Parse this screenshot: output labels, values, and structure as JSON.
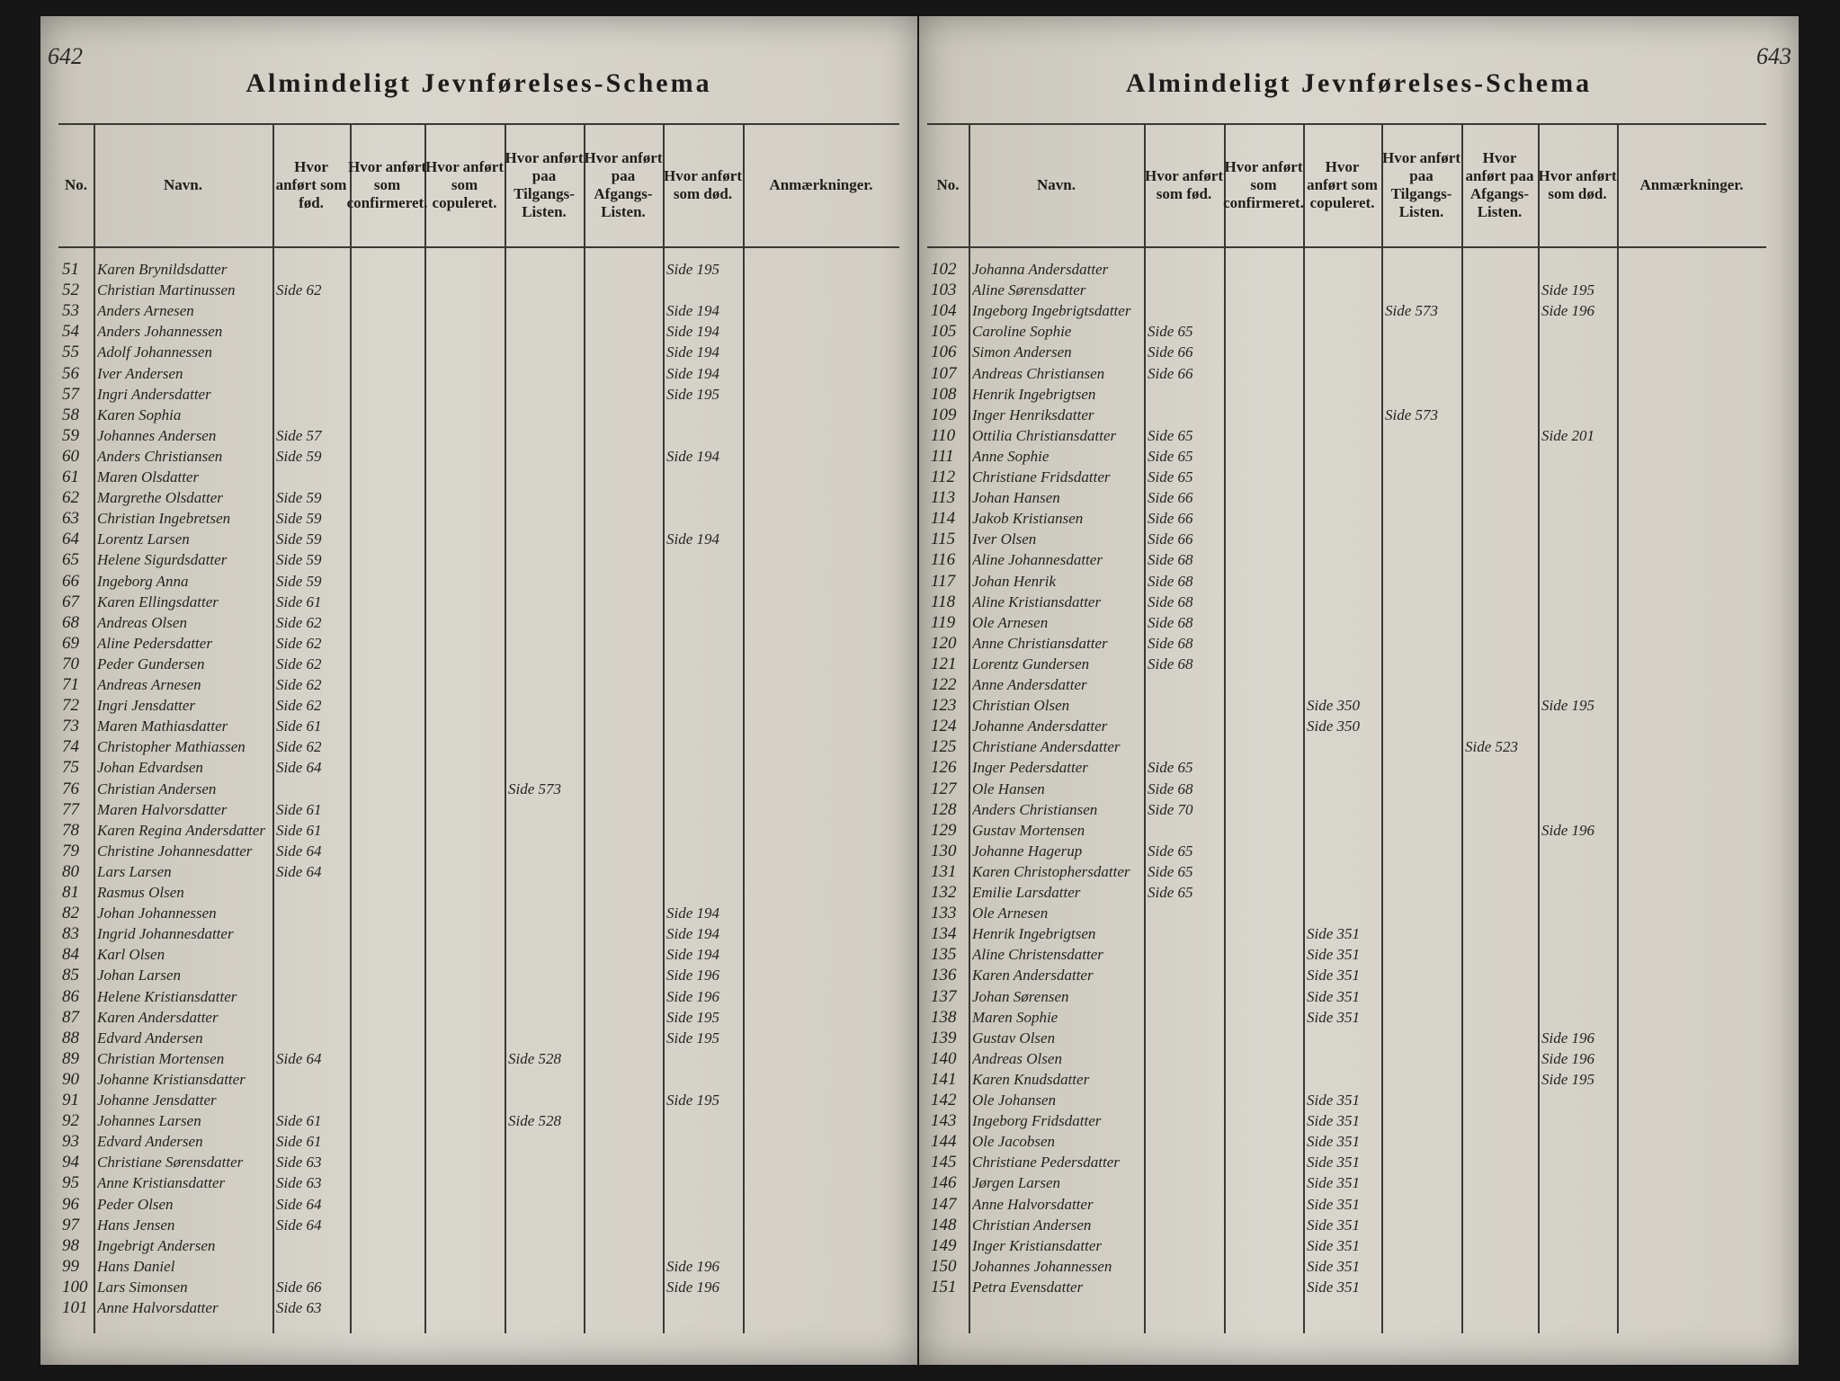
{
  "pages": [
    {
      "page_number": "642",
      "title": "Almindeligt Jevnførelses-Schema",
      "headers": [
        "No.",
        "Navn.",
        "Hvor anført som fød.",
        "Hvor anført som confirmeret.",
        "Hvor anført som copuleret.",
        "Hvor anført paa Tilgangs-Listen.",
        "Hvor anført paa Afgangs-Listen.",
        "Hvor anført som død.",
        "Anmærkninger."
      ],
      "rows": [
        {
          "no": "51",
          "name": "Karen Brynildsdatter",
          "dod": "Side 195"
        },
        {
          "no": "52",
          "name": "Christian Martinussen",
          "fod": "Side 62"
        },
        {
          "no": "53",
          "name": "Anders Arnesen",
          "dod": "Side 194"
        },
        {
          "no": "54",
          "name": "Anders Johannessen",
          "dod": "Side 194"
        },
        {
          "no": "55",
          "name": "Adolf Johannessen",
          "dod": "Side 194"
        },
        {
          "no": "56",
          "name": "Iver Andersen",
          "dod": "Side 194"
        },
        {
          "no": "57",
          "name": "Ingri Andersdatter",
          "dod": "Side 195"
        },
        {
          "no": "58",
          "name": "Karen Sophia"
        },
        {
          "no": "59",
          "name": "Johannes Andersen",
          "fod": "Side 57"
        },
        {
          "no": "60",
          "name": "Anders Christiansen",
          "fod": "Side 59",
          "dod": "Side 194"
        },
        {
          "no": "61",
          "name": "Maren Olsdatter"
        },
        {
          "no": "62",
          "name": "Margrethe Olsdatter",
          "fod": "Side 59"
        },
        {
          "no": "63",
          "name": "Christian Ingebretsen",
          "fod": "Side 59"
        },
        {
          "no": "64",
          "name": "Lorentz Larsen",
          "fod": "Side 59",
          "dod": "Side 194"
        },
        {
          "no": "65",
          "name": "Helene Sigurdsdatter",
          "fod": "Side 59"
        },
        {
          "no": "66",
          "name": "Ingeborg Anna",
          "fod": "Side 59"
        },
        {
          "no": "67",
          "name": "Karen Ellingsdatter",
          "fod": "Side 61"
        },
        {
          "no": "68",
          "name": "Andreas Olsen",
          "fod": "Side 62"
        },
        {
          "no": "69",
          "name": "Aline Pedersdatter",
          "fod": "Side 62"
        },
        {
          "no": "70",
          "name": "Peder Gundersen",
          "fod": "Side 62"
        },
        {
          "no": "71",
          "name": "Andreas Arnesen",
          "fod": "Side 62"
        },
        {
          "no": "72",
          "name": "Ingri Jensdatter",
          "fod": "Side 62"
        },
        {
          "no": "73",
          "name": "Maren Mathiasdatter",
          "fod": "Side 61"
        },
        {
          "no": "74",
          "name": "Christopher Mathiassen",
          "fod": "Side 62"
        },
        {
          "no": "75",
          "name": "Johan Edvardsen",
          "fod": "Side 64"
        },
        {
          "no": "76",
          "name": "Christian Andersen",
          "tilg": "Side 573"
        },
        {
          "no": "77",
          "name": "Maren Halvorsdatter",
          "fod": "Side 61"
        },
        {
          "no": "78",
          "name": "Karen Regina Andersdatter",
          "fod": "Side 61"
        },
        {
          "no": "79",
          "name": "Christine Johannesdatter",
          "fod": "Side 64"
        },
        {
          "no": "80",
          "name": "Lars Larsen",
          "fod": "Side 64"
        },
        {
          "no": "81",
          "name": "Rasmus Olsen"
        },
        {
          "no": "82",
          "name": "Johan Johannessen",
          "dod": "Side 194"
        },
        {
          "no": "83",
          "name": "Ingrid Johannesdatter",
          "dod": "Side 194"
        },
        {
          "no": "84",
          "name": "Karl Olsen",
          "dod": "Side 194"
        },
        {
          "no": "85",
          "name": "Johan Larsen",
          "dod": "Side 196"
        },
        {
          "no": "86",
          "name": "Helene Kristiansdatter",
          "dod": "Side 196"
        },
        {
          "no": "87",
          "name": "Karen Andersdatter",
          "dod": "Side 195"
        },
        {
          "no": "88",
          "name": "Edvard Andersen",
          "dod": "Side 195"
        },
        {
          "no": "89",
          "name": "Christian Mortensen",
          "fod": "Side 64",
          "tilg": "Side 528"
        },
        {
          "no": "90",
          "name": "Johanne Kristiansdatter"
        },
        {
          "no": "91",
          "name": "Johanne Jensdatter",
          "dod": "Side 195"
        },
        {
          "no": "92",
          "name": "Johannes Larsen",
          "fod": "Side 61",
          "tilg": "Side 528"
        },
        {
          "no": "93",
          "name": "Edvard Andersen",
          "fod": "Side 61"
        },
        {
          "no": "94",
          "name": "Christiane Sørensdatter",
          "fod": "Side 63"
        },
        {
          "no": "95",
          "name": "Anne Kristiansdatter",
          "fod": "Side 63"
        },
        {
          "no": "96",
          "name": "Peder Olsen",
          "fod": "Side 64"
        },
        {
          "no": "97",
          "name": "Hans Jensen",
          "fod": "Side 64"
        },
        {
          "no": "98",
          "name": "Ingebrigt Andersen"
        },
        {
          "no": "99",
          "name": "Hans Daniel",
          "dod": "Side 196"
        },
        {
          "no": "100",
          "name": "Lars Simonsen",
          "fod": "Side 66",
          "dod": "Side 196"
        },
        {
          "no": "101",
          "name": "Anne Halvorsdatter",
          "fod": "Side 63"
        }
      ]
    },
    {
      "page_number": "643",
      "title": "Almindeligt Jevnførelses-Schema",
      "headers": [
        "No.",
        "Navn.",
        "Hvor anført som fød.",
        "Hvor anført som confirmeret.",
        "Hvor anført som copuleret.",
        "Hvor anført paa Tilgangs-Listen.",
        "Hvor anført paa Afgangs-Listen.",
        "Hvor anført som død.",
        "Anmærkninger."
      ],
      "rows": [
        {
          "no": "102",
          "name": "Johanna Andersdatter"
        },
        {
          "no": "103",
          "name": "Aline Sørensdatter",
          "dod": "Side 195"
        },
        {
          "no": "104",
          "name": "Ingeborg Ingebrigtsdatter",
          "tilg": "Side 573",
          "dod": "Side 196"
        },
        {
          "no": "105",
          "name": "Caroline Sophie",
          "fod": "Side 65"
        },
        {
          "no": "106",
          "name": "Simon Andersen",
          "fod": "Side 66"
        },
        {
          "no": "107",
          "name": "Andreas Christiansen",
          "fod": "Side 66"
        },
        {
          "no": "108",
          "name": "Henrik Ingebrigtsen"
        },
        {
          "no": "109",
          "name": "Inger Henriksdatter",
          "tilg": "Side 573"
        },
        {
          "no": "110",
          "name": "Ottilia Christiansdatter",
          "fod": "Side 65",
          "dod": "Side 201"
        },
        {
          "no": "111",
          "name": "Anne Sophie",
          "fod": "Side 65"
        },
        {
          "no": "112",
          "name": "Christiane Fridsdatter",
          "fod": "Side 65"
        },
        {
          "no": "113",
          "name": "Johan Hansen",
          "fod": "Side 66"
        },
        {
          "no": "114",
          "name": "Jakob Kristiansen",
          "fod": "Side 66"
        },
        {
          "no": "115",
          "name": "Iver Olsen",
          "fod": "Side 66"
        },
        {
          "no": "116",
          "name": "Aline Johannesdatter",
          "fod": "Side 68"
        },
        {
          "no": "117",
          "name": "Johan Henrik",
          "fod": "Side 68"
        },
        {
          "no": "118",
          "name": "Aline Kristiansdatter",
          "fod": "Side 68"
        },
        {
          "no": "119",
          "name": "Ole Arnesen",
          "fod": "Side 68"
        },
        {
          "no": "120",
          "name": "Anne Christiansdatter",
          "fod": "Side 68"
        },
        {
          "no": "121",
          "name": "Lorentz Gundersen",
          "fod": "Side 68"
        },
        {
          "no": "122",
          "name": "Anne Andersdatter"
        },
        {
          "no": "123",
          "name": "Christian Olsen",
          "cop": "Side 350",
          "dod": "Side 195"
        },
        {
          "no": "124",
          "name": "Johanne Andersdatter",
          "cop": "Side 350"
        },
        {
          "no": "125",
          "name": "Christiane Andersdatter",
          "afg": "Side 523"
        },
        {
          "no": "126",
          "name": "Inger Pedersdatter",
          "fod": "Side 65"
        },
        {
          "no": "127",
          "name": "Ole Hansen",
          "fod": "Side 68"
        },
        {
          "no": "128",
          "name": "Anders Christiansen",
          "fod": "Side 70"
        },
        {
          "no": "129",
          "name": "Gustav Mortensen",
          "dod": "Side 196"
        },
        {
          "no": "130",
          "name": "Johanne Hagerup",
          "fod": "Side 65"
        },
        {
          "no": "131",
          "name": "Karen Christophersdatter",
          "fod": "Side 65"
        },
        {
          "no": "132",
          "name": "Emilie Larsdatter",
          "fod": "Side 65"
        },
        {
          "no": "133",
          "name": "Ole Arnesen"
        },
        {
          "no": "134",
          "name": "Henrik Ingebrigtsen",
          "cop": "Side 351"
        },
        {
          "no": "135",
          "name": "Aline Christensdatter",
          "cop": "Side 351"
        },
        {
          "no": "136",
          "name": "Karen Andersdatter",
          "cop": "Side 351"
        },
        {
          "no": "137",
          "name": "Johan Sørensen",
          "cop": "Side 351"
        },
        {
          "no": "138",
          "name": "Maren Sophie",
          "cop": "Side 351"
        },
        {
          "no": "139",
          "name": "Gustav Olsen",
          "dod": "Side 196"
        },
        {
          "no": "140",
          "name": "Andreas Olsen",
          "dod": "Side 196"
        },
        {
          "no": "141",
          "name": "Karen Knudsdatter",
          "dod": "Side 195"
        },
        {
          "no": "142",
          "name": "Ole Johansen",
          "cop": "Side 351"
        },
        {
          "no": "143",
          "name": "Ingeborg Fridsdatter",
          "cop": "Side 351"
        },
        {
          "no": "144",
          "name": "Ole Jacobsen",
          "cop": "Side 351"
        },
        {
          "no": "145",
          "name": "Christiane Pedersdatter",
          "cop": "Side 351"
        },
        {
          "no": "146",
          "name": "Jørgen Larsen",
          "cop": "Side 351"
        },
        {
          "no": "147",
          "name": "Anne Halvorsdatter",
          "cop": "Side 351"
        },
        {
          "no": "148",
          "name": "Christian Andersen",
          "cop": "Side 351"
        },
        {
          "no": "149",
          "name": "Inger Kristiansdatter",
          "cop": "Side 351"
        },
        {
          "no": "150",
          "name": "Johannes Johannessen",
          "cop": "Side 351"
        },
        {
          "no": "151",
          "name": "Petra Evensdatter",
          "cop": "Side 351"
        }
      ]
    }
  ]
}
